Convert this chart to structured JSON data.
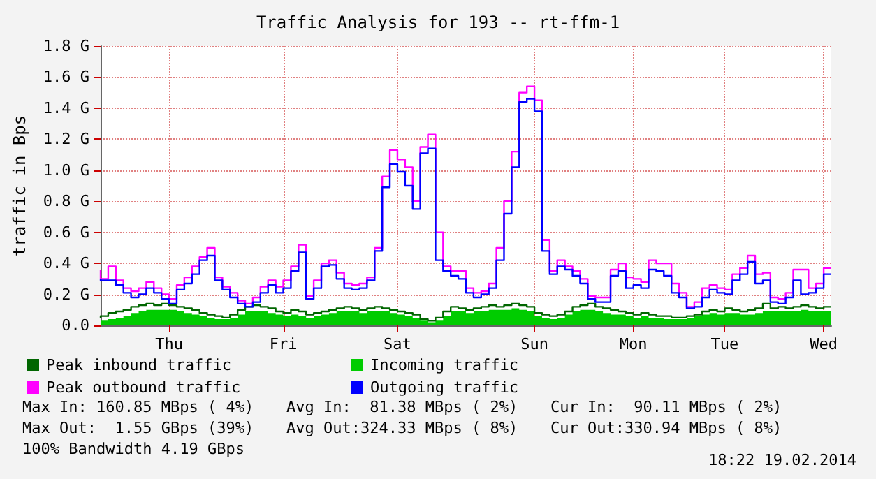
{
  "chart_data": {
    "type": "step",
    "title": "Traffic Analysis for 193 -- rt-ffm-1",
    "ylabel": "traffic in Bps",
    "categories": [
      null,
      null,
      null,
      null,
      null,
      null,
      null,
      null,
      null,
      "Thu",
      null,
      null,
      null,
      null,
      null,
      null,
      null,
      null,
      null,
      null,
      null,
      null,
      null,
      null,
      "Fri",
      null,
      null,
      null,
      null,
      null,
      null,
      null,
      null,
      null,
      null,
      null,
      null,
      null,
      null,
      "Sat",
      null,
      null,
      null,
      null,
      null,
      null,
      null,
      null,
      null,
      null,
      null,
      null,
      null,
      null,
      null,
      null,
      null,
      "Sun",
      null,
      null,
      null,
      null,
      null,
      null,
      null,
      null,
      null,
      null,
      null,
      null,
      "Mon",
      null,
      null,
      null,
      null,
      null,
      null,
      null,
      null,
      null,
      null,
      null,
      "Tue",
      null,
      null,
      null,
      null,
      null,
      null,
      null,
      null,
      null,
      null,
      null,
      null,
      "Wed",
      null
    ],
    "series": [
      {
        "name": "Peak inbound traffic",
        "color": "#006600",
        "values": [
          0.05,
          0.06,
          0.08,
          0.09,
          0.1,
          0.12,
          0.13,
          0.14,
          0.13,
          0.14,
          0.13,
          0.12,
          0.11,
          0.1,
          0.08,
          0.07,
          0.06,
          0.05,
          0.07,
          0.1,
          0.12,
          0.13,
          0.12,
          0.11,
          0.09,
          0.08,
          0.1,
          0.09,
          0.07,
          0.08,
          0.09,
          0.1,
          0.11,
          0.12,
          0.11,
          0.1,
          0.11,
          0.12,
          0.11,
          0.1,
          0.09,
          0.08,
          0.07,
          0.04,
          0.03,
          0.05,
          0.09,
          0.12,
          0.11,
          0.1,
          0.11,
          0.12,
          0.13,
          0.12,
          0.13,
          0.14,
          0.13,
          0.12,
          0.08,
          0.07,
          0.06,
          0.07,
          0.09,
          0.12,
          0.13,
          0.14,
          0.12,
          0.11,
          0.1,
          0.09,
          0.08,
          0.07,
          0.08,
          0.07,
          0.06,
          0.06,
          0.05,
          0.05,
          0.06,
          0.07,
          0.09,
          0.1,
          0.09,
          0.11,
          0.1,
          0.09,
          0.1,
          0.11,
          0.14,
          0.11,
          0.12,
          0.11,
          0.12,
          0.13,
          0.12,
          0.11,
          0.12
        ]
      },
      {
        "name": "Incoming traffic",
        "type": "area",
        "color": "#00cc00",
        "values": [
          0.03,
          0.03,
          0.04,
          0.05,
          0.06,
          0.08,
          0.09,
          0.1,
          0.1,
          0.1,
          0.1,
          0.09,
          0.08,
          0.07,
          0.06,
          0.05,
          0.04,
          0.04,
          0.05,
          0.07,
          0.09,
          0.09,
          0.09,
          0.08,
          0.07,
          0.06,
          0.07,
          0.06,
          0.05,
          0.06,
          0.07,
          0.08,
          0.09,
          0.09,
          0.09,
          0.08,
          0.09,
          0.09,
          0.09,
          0.08,
          0.07,
          0.06,
          0.05,
          0.03,
          0.02,
          0.03,
          0.06,
          0.09,
          0.09,
          0.08,
          0.09,
          0.09,
          0.1,
          0.1,
          0.1,
          0.11,
          0.1,
          0.09,
          0.06,
          0.05,
          0.04,
          0.05,
          0.07,
          0.09,
          0.1,
          0.1,
          0.09,
          0.08,
          0.07,
          0.07,
          0.06,
          0.05,
          0.06,
          0.05,
          0.05,
          0.04,
          0.04,
          0.04,
          0.05,
          0.06,
          0.07,
          0.08,
          0.07,
          0.08,
          0.08,
          0.07,
          0.07,
          0.08,
          0.09,
          0.09,
          0.09,
          0.09,
          0.09,
          0.1,
          0.09,
          0.09,
          0.09
        ]
      },
      {
        "name": "Peak outbound traffic",
        "color": "#ff00ff",
        "values": [
          0.36,
          0.3,
          0.38,
          0.29,
          0.24,
          0.22,
          0.24,
          0.28,
          0.24,
          0.2,
          0.17,
          0.26,
          0.31,
          0.38,
          0.44,
          0.5,
          0.31,
          0.25,
          0.21,
          0.16,
          0.14,
          0.18,
          0.25,
          0.29,
          0.25,
          0.29,
          0.38,
          0.52,
          0.19,
          0.29,
          0.4,
          0.42,
          0.34,
          0.27,
          0.26,
          0.27,
          0.31,
          0.5,
          0.96,
          1.13,
          1.07,
          1.02,
          0.8,
          1.15,
          1.23,
          0.6,
          0.38,
          0.35,
          0.35,
          0.24,
          0.21,
          0.22,
          0.27,
          0.5,
          0.8,
          1.12,
          1.5,
          1.54,
          1.45,
          0.55,
          0.35,
          0.42,
          0.38,
          0.35,
          0.3,
          0.19,
          0.18,
          0.18,
          0.36,
          0.4,
          0.31,
          0.3,
          0.28,
          0.42,
          0.4,
          0.4,
          0.27,
          0.21,
          0.12,
          0.15,
          0.24,
          0.26,
          0.24,
          0.23,
          0.33,
          0.37,
          0.45,
          0.33,
          0.34,
          0.18,
          0.17,
          0.21,
          0.36,
          0.36,
          0.24,
          0.27,
          0.37
        ]
      },
      {
        "name": "Outgoing traffic",
        "color": "#0000ff",
        "values": [
          0.3,
          0.29,
          0.29,
          0.26,
          0.21,
          0.18,
          0.2,
          0.24,
          0.21,
          0.17,
          0.14,
          0.23,
          0.27,
          0.33,
          0.42,
          0.45,
          0.29,
          0.23,
          0.18,
          0.14,
          0.12,
          0.15,
          0.21,
          0.26,
          0.21,
          0.24,
          0.35,
          0.47,
          0.17,
          0.24,
          0.38,
          0.39,
          0.3,
          0.24,
          0.23,
          0.24,
          0.29,
          0.48,
          0.89,
          1.04,
          0.99,
          0.9,
          0.75,
          1.11,
          1.14,
          0.42,
          0.35,
          0.32,
          0.3,
          0.21,
          0.18,
          0.2,
          0.24,
          0.42,
          0.72,
          1.02,
          1.44,
          1.46,
          1.38,
          0.48,
          0.33,
          0.38,
          0.36,
          0.32,
          0.27,
          0.17,
          0.15,
          0.15,
          0.32,
          0.35,
          0.24,
          0.26,
          0.24,
          0.36,
          0.35,
          0.32,
          0.21,
          0.18,
          0.11,
          0.12,
          0.18,
          0.23,
          0.21,
          0.2,
          0.29,
          0.33,
          0.41,
          0.27,
          0.29,
          0.15,
          0.14,
          0.18,
          0.29,
          0.2,
          0.21,
          0.24,
          0.33
        ]
      }
    ],
    "ylim": [
      0,
      1.8
    ],
    "yticks": [
      {
        "value": 0,
        "label": "0.0"
      },
      {
        "value": 0.2,
        "label": "0.2 G"
      },
      {
        "value": 0.4,
        "label": "0.4 G"
      },
      {
        "value": 0.6,
        "label": "0.6 G"
      },
      {
        "value": 0.8,
        "label": "0.8 G"
      },
      {
        "value": 1.0,
        "label": "1.0 G"
      },
      {
        "value": 1.2,
        "label": "1.2 G"
      },
      {
        "value": 1.4,
        "label": "1.4 G"
      },
      {
        "value": 1.6,
        "label": "1.6 G"
      },
      {
        "value": 1.8,
        "label": "1.8 G"
      }
    ],
    "grid": true,
    "legend": "bottom left",
    "annotations": [
      "Max In: 160.85 MBps ( 4%)",
      "Avg In:  81.38 MBps ( 2%)",
      "Cur In:  90.11 MBps ( 2%)",
      "Max Out:  1.55 GBps (39%)",
      "Avg Out:324.33 MBps ( 8%)",
      "Cur Out:330.94 MBps ( 8%)",
      "100% Bandwidth 4.19 GBps",
      "18:22 19.02.2014"
    ]
  }
}
